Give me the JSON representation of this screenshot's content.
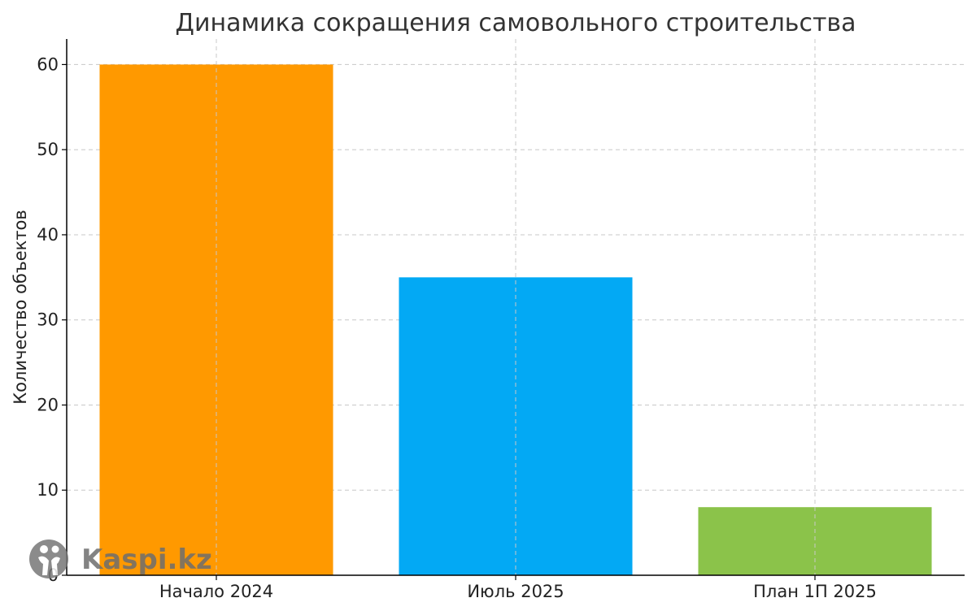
{
  "chart_data": {
    "type": "bar",
    "title": "Динамика сокращения самовольного строительства",
    "xlabel": "",
    "ylabel": "Количество объектов",
    "categories": [
      "Начало 2024",
      "Июль 2025",
      "План 1П 2025"
    ],
    "values": [
      60,
      35,
      8
    ],
    "colors": [
      "#ff9900",
      "#03a9f4",
      "#8bc34a"
    ],
    "ylim": [
      0,
      63
    ],
    "yticks": [
      0,
      10,
      20,
      30,
      40,
      50,
      60
    ],
    "grid": true
  },
  "watermark": {
    "text": "Kaspi.kz",
    "icon": "kaspi-logo-icon"
  }
}
